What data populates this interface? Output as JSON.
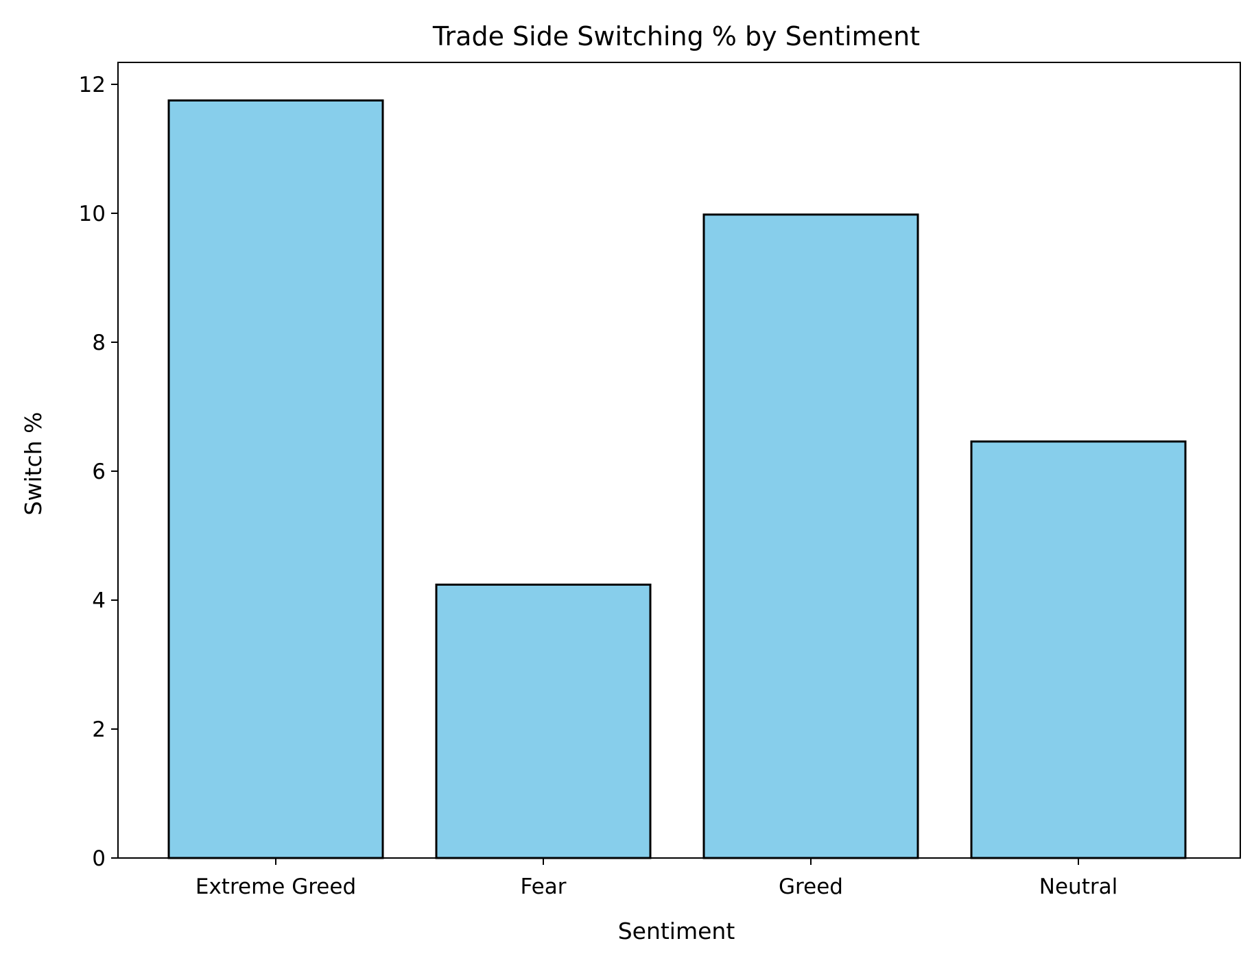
{
  "chart_data": {
    "type": "bar",
    "title": "Trade Side Switching % by Sentiment",
    "xlabel": "Sentiment",
    "ylabel": "Switch %",
    "categories": [
      "Extreme Greed",
      "Fear",
      "Greed",
      "Neutral"
    ],
    "values": [
      11.75,
      4.24,
      9.98,
      6.46
    ],
    "ylim": [
      0,
      12.34
    ],
    "yticks": [
      0,
      2,
      4,
      6,
      8,
      10,
      12
    ],
    "ytick_labels": [
      "0",
      "2",
      "4",
      "6",
      "8",
      "10",
      "12"
    ],
    "grid": false,
    "legend": "none",
    "colors": {
      "bar_fill": "#87ceeb",
      "bar_edge": "#000000",
      "axis": "#000000",
      "background": "#ffffff"
    }
  }
}
